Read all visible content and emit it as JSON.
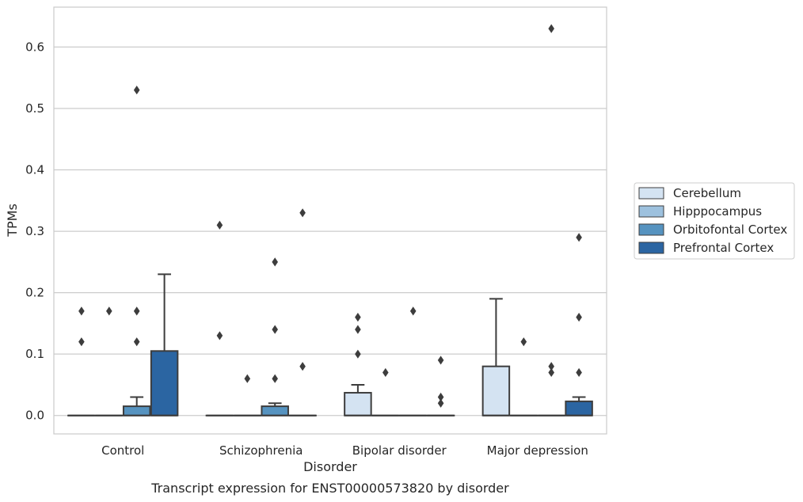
{
  "chart_data": {
    "type": "box",
    "title": "",
    "caption": "Transcript expression for ENST00000573820 by disorder",
    "xlabel": "Disorder",
    "ylabel": "TPMs",
    "ylim": [
      -0.03,
      0.665
    ],
    "yticks": [
      0.0,
      0.1,
      0.2,
      0.3,
      0.4,
      0.5,
      0.6
    ],
    "ytick_labels": [
      "0.0",
      "0.1",
      "0.2",
      "0.3",
      "0.4",
      "0.5",
      "0.6"
    ],
    "grid": "horizontal",
    "legend_position": "right",
    "categories": [
      "Control",
      "Schizophrenia",
      "Bipolar disorder",
      "Major depression"
    ],
    "series": [
      {
        "name": "Cerebellum",
        "color": "#d4e3f2",
        "boxes": [
          {
            "q1": 0,
            "median": 0,
            "q3": 0,
            "whisker_low": 0,
            "whisker_high": 0,
            "outliers": [
              0.12,
              0.17
            ]
          },
          {
            "q1": 0,
            "median": 0,
            "q3": 0,
            "whisker_low": 0,
            "whisker_high": 0,
            "outliers": [
              0.13,
              0.31
            ]
          },
          {
            "q1": 0,
            "median": 0,
            "q3": 0.037,
            "whisker_low": 0,
            "whisker_high": 0.05,
            "outliers": [
              0.1,
              0.14,
              0.16
            ]
          },
          {
            "q1": 0,
            "median": 0,
            "q3": 0.08,
            "whisker_low": 0,
            "whisker_high": 0.19,
            "outliers": []
          }
        ]
      },
      {
        "name": "Hipppocampus",
        "color": "#9dc1de",
        "boxes": [
          {
            "q1": 0,
            "median": 0,
            "q3": 0,
            "whisker_low": 0,
            "whisker_high": 0,
            "outliers": [
              0.17
            ]
          },
          {
            "q1": 0,
            "median": 0,
            "q3": 0,
            "whisker_low": 0,
            "whisker_high": 0,
            "outliers": [
              0.06
            ]
          },
          {
            "q1": 0,
            "median": 0,
            "q3": 0,
            "whisker_low": 0,
            "whisker_high": 0,
            "outliers": [
              0.07
            ]
          },
          {
            "q1": 0,
            "median": 0,
            "q3": 0,
            "whisker_low": 0,
            "whisker_high": 0,
            "outliers": [
              0.12
            ]
          }
        ]
      },
      {
        "name": "Orbitofontal Cortex",
        "color": "#5693c0",
        "boxes": [
          {
            "q1": 0,
            "median": 0,
            "q3": 0.015,
            "whisker_low": 0,
            "whisker_high": 0.03,
            "outliers": [
              0.12,
              0.17,
              0.53
            ]
          },
          {
            "q1": 0,
            "median": 0,
            "q3": 0.015,
            "whisker_low": 0,
            "whisker_high": 0.02,
            "outliers": [
              0.06,
              0.14,
              0.25
            ]
          },
          {
            "q1": 0,
            "median": 0,
            "q3": 0,
            "whisker_low": 0,
            "whisker_high": 0,
            "outliers": [
              0.17
            ]
          },
          {
            "q1": 0,
            "median": 0,
            "q3": 0,
            "whisker_low": 0,
            "whisker_high": 0,
            "outliers": [
              0.07,
              0.08,
              0.63
            ]
          }
        ]
      },
      {
        "name": "Prefrontal Cortex",
        "color": "#2b65a2",
        "boxes": [
          {
            "q1": 0,
            "median": 0,
            "q3": 0.105,
            "whisker_low": 0,
            "whisker_high": 0.23,
            "outliers": []
          },
          {
            "q1": 0,
            "median": 0,
            "q3": 0,
            "whisker_low": 0,
            "whisker_high": 0,
            "outliers": [
              0.08,
              0.33
            ]
          },
          {
            "q1": 0,
            "median": 0,
            "q3": 0,
            "whisker_low": 0,
            "whisker_high": 0,
            "outliers": [
              0.02,
              0.03,
              0.09
            ]
          },
          {
            "q1": 0,
            "median": 0,
            "q3": 0.023,
            "whisker_low": 0,
            "whisker_high": 0.03,
            "outliers": [
              0.07,
              0.16,
              0.29
            ]
          }
        ]
      }
    ]
  }
}
